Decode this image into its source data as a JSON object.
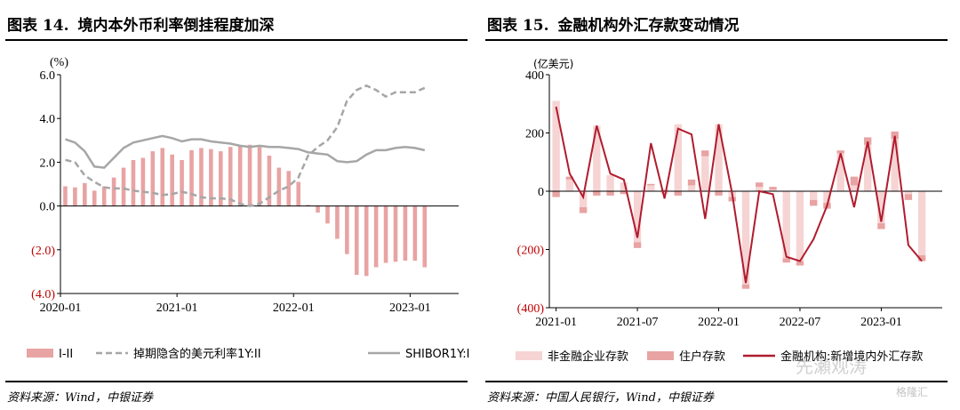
{
  "left": {
    "title_num": "图表 14.",
    "title_text": "境内本外币利率倒挂程度加深",
    "source": "资料来源：Wind，中银证券",
    "chart_data": {
      "type": "bar+line",
      "unit_label": "(%)",
      "ylim": [
        -4.0,
        6.0
      ],
      "yticks": [
        "6.0",
        "4.0",
        "2.0",
        "0.0",
        "(2.0)",
        "(4.0)"
      ],
      "ytick_values": [
        6,
        4,
        2,
        0,
        -2,
        -4
      ],
      "xtick_labels": [
        "2020-01",
        "2021-01",
        "2022-01",
        "2023-01"
      ],
      "xtick_index": [
        0,
        12,
        24,
        36
      ],
      "n": 41,
      "series": [
        {
          "name": "I-II",
          "kind": "bar",
          "color": "#e8a3a3",
          "values": [
            0.9,
            0.85,
            1.05,
            0.7,
            0.9,
            1.3,
            1.75,
            2.1,
            2.2,
            2.5,
            2.65,
            2.35,
            2.1,
            2.55,
            2.65,
            2.6,
            2.5,
            2.7,
            2.75,
            2.8,
            2.7,
            2.3,
            1.75,
            1.6,
            1.1,
            0.05,
            -0.3,
            -0.8,
            -1.5,
            -2.2,
            -3.15,
            -3.2,
            -2.8,
            -2.6,
            -2.55,
            -2.5,
            -2.5,
            -2.8
          ]
        },
        {
          "name": "掉期隐含的美元利率1Y:II",
          "kind": "dashed",
          "color": "#a6a6a6",
          "values": [
            2.1,
            2.0,
            1.4,
            1.1,
            0.85,
            0.8,
            0.8,
            0.7,
            0.65,
            0.6,
            0.5,
            0.55,
            0.65,
            0.55,
            0.4,
            0.35,
            0.35,
            0.3,
            0.1,
            0.0,
            0.1,
            0.4,
            0.7,
            0.9,
            1.3,
            2.3,
            2.7,
            3.0,
            3.6,
            4.8,
            5.3,
            5.5,
            5.3,
            5.0,
            5.2,
            5.2,
            5.2,
            5.4
          ]
        },
        {
          "name": "SHIBOR1Y:I",
          "kind": "solid",
          "color": "#a6a6a6",
          "values": [
            3.05,
            2.9,
            2.5,
            1.8,
            1.75,
            2.2,
            2.65,
            2.9,
            3.0,
            3.1,
            3.2,
            3.1,
            2.95,
            3.05,
            3.05,
            2.95,
            2.9,
            2.85,
            2.75,
            2.7,
            2.75,
            2.7,
            2.7,
            2.65,
            2.6,
            2.45,
            2.4,
            2.35,
            2.05,
            2.0,
            2.05,
            2.35,
            2.55,
            2.55,
            2.65,
            2.7,
            2.65,
            2.55
          ]
        }
      ],
      "legend": [
        "I-II",
        "掉期隐含的美元利率1Y:II",
        "SHIBOR1Y:I"
      ]
    }
  },
  "right": {
    "title_num": "图表 15.",
    "title_text": "金融机构外汇存款变动情况",
    "source": "资料来源：中国人民银行，Wind，中银证券",
    "chart_data": {
      "type": "bar+line",
      "unit_label": "(亿美元)",
      "ylim": [
        -400,
        400
      ],
      "yticks": [
        "400",
        "200",
        "0",
        "(200)",
        "(400)"
      ],
      "ytick_values": [
        400,
        200,
        0,
        -200,
        -400
      ],
      "xtick_labels": [
        "2021-01",
        "2021-07",
        "2022-01",
        "2022-07",
        "2023-01"
      ],
      "xtick_index": [
        0,
        6,
        12,
        18,
        24
      ],
      "n": 29,
      "series": [
        {
          "name": "非金融企业存款",
          "kind": "bar",
          "color": "#f6d4d4",
          "values": [
            310,
            40,
            -55,
            225,
            55,
            30,
            -175,
            20,
            -10,
            230,
            20,
            120,
            230,
            -20,
            -320,
            15,
            5,
            -230,
            -240,
            -30,
            -40,
            130,
            20,
            160,
            -110,
            180,
            -10,
            -220
          ]
        },
        {
          "name": "住户存款",
          "kind": "bar",
          "color": "#e8a3a3",
          "values": [
            -20,
            10,
            -20,
            -15,
            -15,
            -10,
            -20,
            5,
            5,
            -15,
            20,
            20,
            -15,
            -15,
            -15,
            15,
            10,
            -15,
            -15,
            -20,
            -20,
            10,
            30,
            25,
            -20,
            25,
            -20,
            -20
          ]
        },
        {
          "name": "金融机构:新增境内外汇存款",
          "kind": "line",
          "color": "#b01c2e",
          "values": [
            290,
            60,
            -20,
            225,
            60,
            40,
            -160,
            165,
            -25,
            215,
            195,
            -95,
            230,
            -10,
            -315,
            0,
            -10,
            -225,
            -240,
            -165,
            -50,
            130,
            -55,
            170,
            -105,
            190,
            -185,
            -240
          ]
        }
      ],
      "legend": [
        "非金融企业存款",
        "住户存款",
        "金融机构:新增境内外汇存款"
      ]
    }
  },
  "watermark": "先瀬观涛",
  "watermark2": "格隆汇"
}
